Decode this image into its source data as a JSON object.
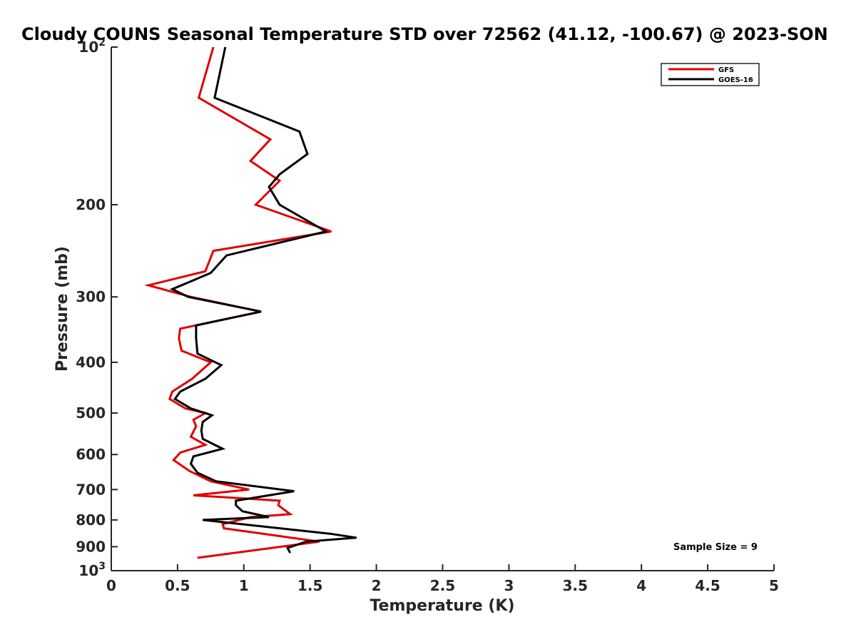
{
  "chart_data": {
    "type": "line",
    "title": "Cloudy COUNS Seasonal Temperature STD over 72562 (41.12, -100.67) @ 2023-SON",
    "xlabel": "Temperature (K)",
    "ylabel": "Pressure (mb)",
    "xlim": [
      0,
      5
    ],
    "ylim": [
      100,
      1000
    ],
    "y_scale": "log",
    "y_reversed": true,
    "grid": false,
    "legend_position": "top-right",
    "x_ticks": [
      0,
      0.5,
      1,
      1.5,
      2,
      2.5,
      3,
      3.5,
      4,
      4.5,
      5
    ],
    "x_tick_labels": [
      "0",
      "0.5",
      "1",
      "1.5",
      "2",
      "2.5",
      "3",
      "3.5",
      "4",
      "4.5",
      "5"
    ],
    "y_ticks": [
      100,
      200,
      300,
      400,
      500,
      600,
      700,
      800,
      900,
      1000
    ],
    "y_tick_labels": [
      {
        "base": "10",
        "exp": "2"
      },
      {
        "base": "200",
        "exp": ""
      },
      {
        "base": "300",
        "exp": ""
      },
      {
        "base": "400",
        "exp": ""
      },
      {
        "base": "500",
        "exp": ""
      },
      {
        "base": "600",
        "exp": ""
      },
      {
        "base": "700",
        "exp": ""
      },
      {
        "base": "800",
        "exp": ""
      },
      {
        "base": "900",
        "exp": ""
      },
      {
        "base": "10",
        "exp": "3"
      }
    ],
    "series": [
      {
        "name": "GFS",
        "color": "#e00000",
        "points": [
          [
            0.77,
            100
          ],
          [
            0.66,
            125
          ],
          [
            1.2,
            150
          ],
          [
            1.05,
            165
          ],
          [
            1.27,
            180
          ],
          [
            1.09,
            200
          ],
          [
            1.66,
            225
          ],
          [
            0.77,
            245
          ],
          [
            0.71,
            268
          ],
          [
            0.28,
            285
          ],
          [
            0.6,
            300
          ],
          [
            1.13,
            320
          ],
          [
            0.52,
            345
          ],
          [
            0.51,
            360
          ],
          [
            0.53,
            380
          ],
          [
            0.75,
            400
          ],
          [
            0.61,
            430
          ],
          [
            0.46,
            455
          ],
          [
            0.44,
            470
          ],
          [
            0.56,
            490
          ],
          [
            0.71,
            500
          ],
          [
            0.62,
            515
          ],
          [
            0.64,
            530
          ],
          [
            0.6,
            555
          ],
          [
            0.71,
            575
          ],
          [
            0.52,
            595
          ],
          [
            0.47,
            615
          ],
          [
            0.59,
            645
          ],
          [
            0.75,
            675
          ],
          [
            1.04,
            700
          ],
          [
            0.62,
            718
          ],
          [
            1.27,
            735
          ],
          [
            1.26,
            750
          ],
          [
            1.35,
            780
          ],
          [
            1.05,
            790
          ],
          [
            0.84,
            815
          ],
          [
            0.85,
            830
          ],
          [
            1.57,
            880
          ],
          [
            0.65,
            945
          ]
        ]
      },
      {
        "name": "GOES-16",
        "color": "#000000",
        "points": [
          [
            0.86,
            100
          ],
          [
            0.78,
            125
          ],
          [
            1.42,
            145
          ],
          [
            1.48,
            160
          ],
          [
            1.27,
            175
          ],
          [
            1.19,
            185
          ],
          [
            1.27,
            200
          ],
          [
            1.62,
            225
          ],
          [
            0.87,
            250
          ],
          [
            0.75,
            270
          ],
          [
            0.46,
            290
          ],
          [
            0.58,
            300
          ],
          [
            1.13,
            320
          ],
          [
            0.64,
            340
          ],
          [
            0.64,
            360
          ],
          [
            0.65,
            385
          ],
          [
            0.83,
            405
          ],
          [
            0.71,
            430
          ],
          [
            0.52,
            455
          ],
          [
            0.48,
            470
          ],
          [
            0.6,
            490
          ],
          [
            0.76,
            505
          ],
          [
            0.69,
            520
          ],
          [
            0.68,
            540
          ],
          [
            0.69,
            560
          ],
          [
            0.84,
            585
          ],
          [
            0.62,
            605
          ],
          [
            0.6,
            625
          ],
          [
            0.65,
            650
          ],
          [
            0.79,
            675
          ],
          [
            1.38,
            705
          ],
          [
            0.94,
            735
          ],
          [
            0.94,
            750
          ],
          [
            0.99,
            770
          ],
          [
            1.19,
            790
          ],
          [
            0.69,
            800
          ],
          [
            1.65,
            850
          ],
          [
            1.85,
            865
          ],
          [
            1.47,
            880
          ],
          [
            1.33,
            905
          ],
          [
            1.35,
            925
          ]
        ]
      }
    ],
    "annotations": [
      {
        "text": "Sample Size = 9",
        "position": "bottom-right"
      }
    ]
  }
}
